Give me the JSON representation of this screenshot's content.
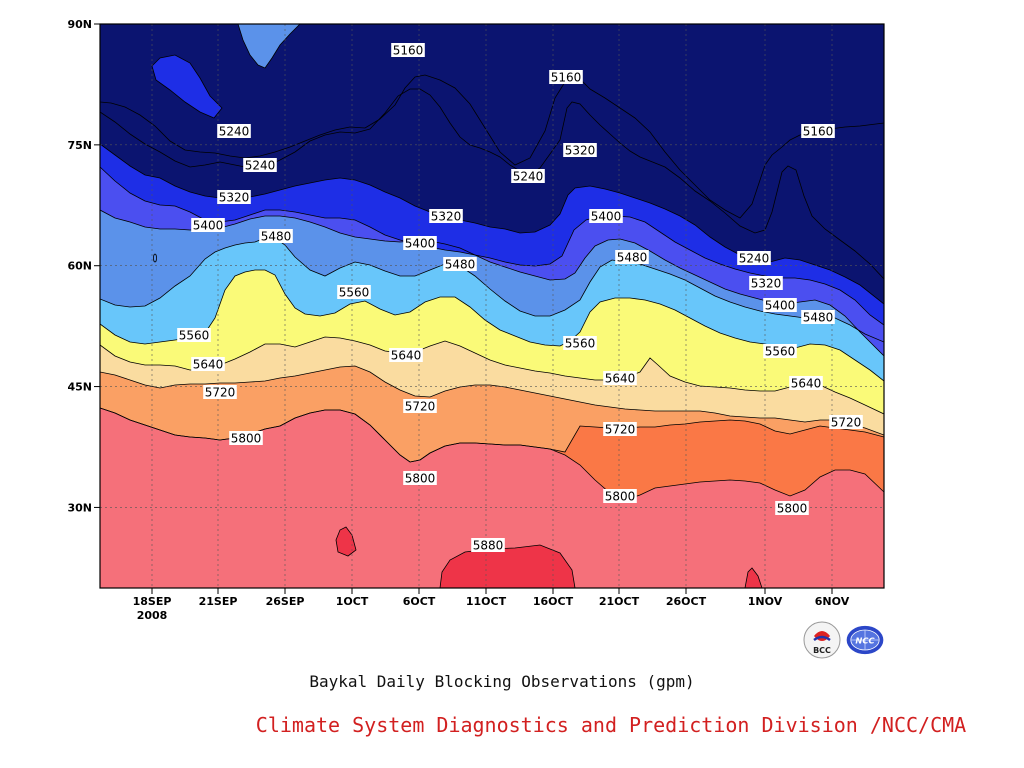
{
  "chart_data": {
    "type": "filled-contour",
    "title": "Baykal Daily Blocking Observations (gpm)",
    "source": "Climate System Diagnostics and Prediction Division /NCC/CMA",
    "x_tick_labels": [
      "18SEP",
      "21SEP",
      "26SEP",
      "1OCT",
      "6OCT",
      "11OCT",
      "16OCT",
      "21OCT",
      "26OCT",
      "1NOV",
      "6NOV"
    ],
    "x_tick_year": "2008",
    "y_tick_labels": [
      "30N",
      "45N",
      "60N",
      "75N",
      "90N"
    ],
    "y_ticks": [
      30,
      45,
      60,
      75,
      90
    ],
    "ylim": [
      20,
      90
    ],
    "contour_levels": [
      5160,
      5240,
      5320,
      5400,
      5480,
      5560,
      5640,
      5720,
      5800,
      5880
    ],
    "contour_labels": [
      {
        "text": "5160",
        "value": 5160
      },
      {
        "text": "5160",
        "value": 5160
      },
      {
        "text": "5160",
        "value": 5160
      },
      {
        "text": "5240",
        "value": 5240
      },
      {
        "text": "5240",
        "value": 5240
      },
      {
        "text": "5240",
        "value": 5240
      },
      {
        "text": "5240",
        "value": 5240
      },
      {
        "text": "5320",
        "value": 5320
      },
      {
        "text": "5320",
        "value": 5320
      },
      {
        "text": "5320",
        "value": 5320
      },
      {
        "text": "5320",
        "value": 5320
      },
      {
        "text": "5400",
        "value": 5400
      },
      {
        "text": "5400",
        "value": 5400
      },
      {
        "text": "5400",
        "value": 5400
      },
      {
        "text": "5400",
        "value": 5400
      },
      {
        "text": "5480",
        "value": 5480
      },
      {
        "text": "5480",
        "value": 5480
      },
      {
        "text": "5480",
        "value": 5480
      },
      {
        "text": "5480",
        "value": 5480
      },
      {
        "text": "5560",
        "value": 5560
      },
      {
        "text": "5560",
        "value": 5560
      },
      {
        "text": "5560",
        "value": 5560
      },
      {
        "text": "5560",
        "value": 5560
      },
      {
        "text": "5640",
        "value": 5640
      },
      {
        "text": "5640",
        "value": 5640
      },
      {
        "text": "5640",
        "value": 5640
      },
      {
        "text": "5640",
        "value": 5640
      },
      {
        "text": "5720",
        "value": 5720
      },
      {
        "text": "5720",
        "value": 5720
      },
      {
        "text": "5720",
        "value": 5720
      },
      {
        "text": "5720",
        "value": 5720
      },
      {
        "text": "5800",
        "value": 5800
      },
      {
        "text": "5800",
        "value": 5800
      },
      {
        "text": "5800",
        "value": 5800
      },
      {
        "text": "5800",
        "value": 5800
      },
      {
        "text": "5880",
        "value": 5880
      }
    ],
    "fill_colors": {
      "below_5160": "#0b1470",
      "5160_5240": "#1e2ee6",
      "5240_5320": "#4b4ff0",
      "5320_5400": "#5b92ea",
      "5400_5480": "#68c6fa",
      "5480_5560": "#fafa78",
      "5560_5640": "#fadca0",
      "5640_5720": "#faa064",
      "5720_5800": "#fa7846",
      "5800_5880": "#f5707a",
      "above_5880": "#ee3448"
    },
    "grid": true
  },
  "logos": [
    {
      "name": "bcc-logo",
      "text": "BCC"
    },
    {
      "name": "ncc-logo",
      "text": "NCC"
    }
  ],
  "colors": {
    "credit_text": "#d22020"
  }
}
